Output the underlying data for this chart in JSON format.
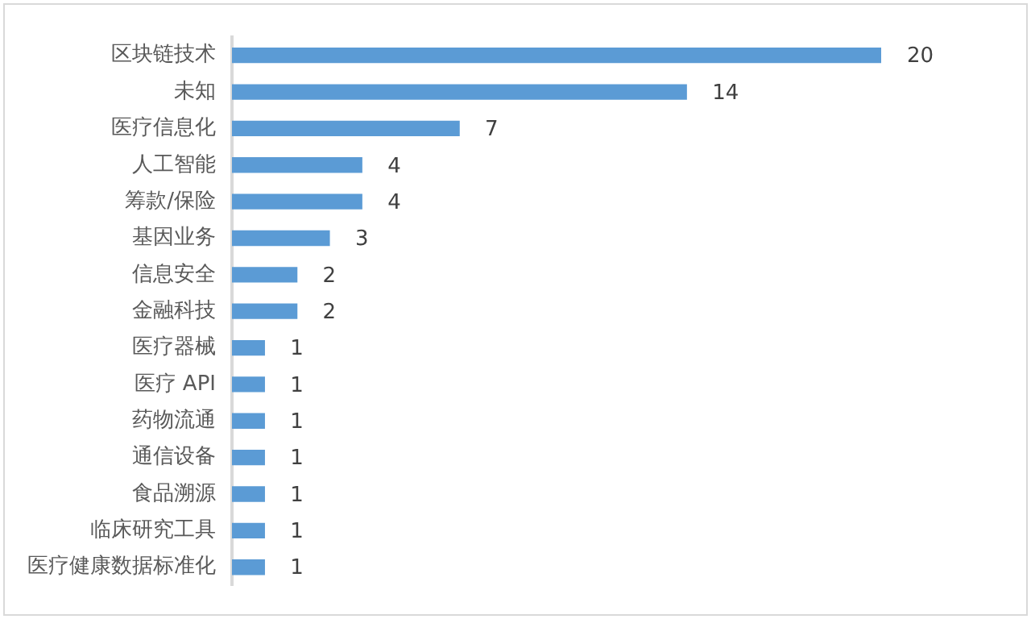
{
  "chart_data": {
    "type": "bar",
    "orientation": "horizontal",
    "data_labels": true,
    "legend": false,
    "categories": [
      "区块链技术",
      "未知",
      "医疗信息化",
      "人工智能",
      "筹款/保险",
      "基因业务",
      "信息安全",
      "金融科技",
      "医疗器械",
      "医疗 API",
      "药物流通",
      "通信设备",
      "食品溯源",
      "临床研究工具",
      "医疗健康数据标准化"
    ],
    "series": [
      {
        "color": "#5b9bd5",
        "values": [
          20,
          14,
          7,
          4,
          4,
          3,
          2,
          2,
          1,
          1,
          1,
          1,
          1,
          1,
          1
        ]
      }
    ]
  }
}
